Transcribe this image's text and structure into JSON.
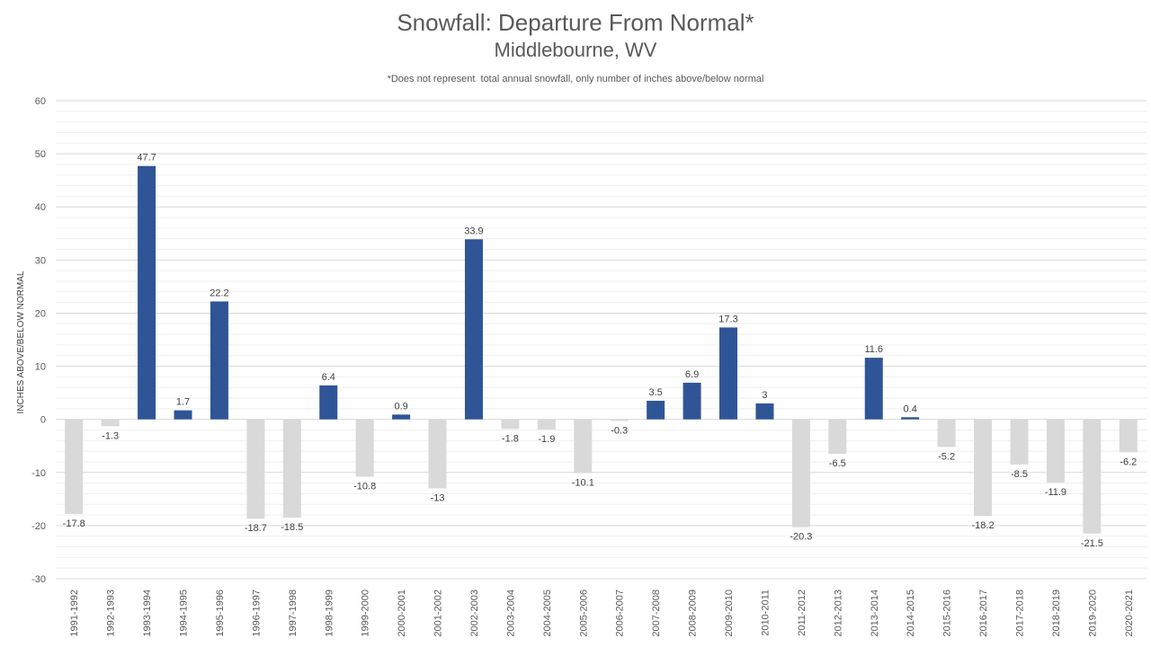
{
  "chart_data": {
    "type": "bar",
    "title": "Snowfall: Departure From Normal*",
    "subtitle": "Middlebourne, WV",
    "note": "*Does not represent  total annual snowfall, only number of inches above/below normal",
    "xlabel": "",
    "ylabel": "INCHES ABOVE/BELOW NORMAL",
    "ylim": [
      -30,
      60
    ],
    "yticks": [
      60,
      50,
      40,
      30,
      20,
      10,
      0,
      -10,
      -20,
      -30
    ],
    "grid": true,
    "legend": "none",
    "colors": {
      "positive": "#2f5597",
      "negative": "#d9d9d9",
      "major_grid": "#d9d9d9",
      "minor_grid": "#efefef",
      "text": "#595959",
      "label": "#404040"
    },
    "categories": [
      "1991-1992",
      "1992-1993",
      "1993-1994",
      "1994-1995",
      "1995-1996",
      "1996-1997",
      "1997-1998",
      "1998-1999",
      "1999-2000",
      "2000-2001",
      "2001-2002",
      "2002-2003",
      "2003-2004",
      "2004-2005",
      "2005-2006",
      "2006-2007",
      "2007-2008",
      "2008-2009",
      "2009-2010",
      "2010-2011",
      "2011-2012",
      "2012-2013",
      "2013-2014",
      "2014-2015",
      "2015-2016",
      "2016-2017",
      "2017-2018",
      "2018-2019",
      "2019-2020",
      "2020-2021"
    ],
    "values": [
      -17.8,
      -1.3,
      47.7,
      1.7,
      22.2,
      -18.7,
      -18.5,
      6.4,
      -10.8,
      0.9,
      -13,
      33.9,
      -1.8,
      -1.9,
      -10.1,
      -0.3,
      3.5,
      6.9,
      17.3,
      3,
      -20.3,
      -6.5,
      11.6,
      0.4,
      -5.2,
      -18.2,
      -8.5,
      -11.9,
      -21.5,
      -6.2
    ],
    "data_labels": [
      "-17.8",
      "-1.3",
      "47.7",
      "1.7",
      "22.2",
      "-18.7",
      "-18.5",
      "6.4",
      "-10.8",
      "0.9",
      "-13",
      "33.9",
      "-1.8",
      "-1.9",
      "-10.1",
      "-0.3",
      "3.5",
      "6.9",
      "17.3",
      "3",
      "-20.3",
      "-6.5",
      "11.6",
      "0.4",
      "-5.2",
      "-18.2",
      "-8.5",
      "-11.9",
      "-21.5",
      "-6.2"
    ]
  }
}
